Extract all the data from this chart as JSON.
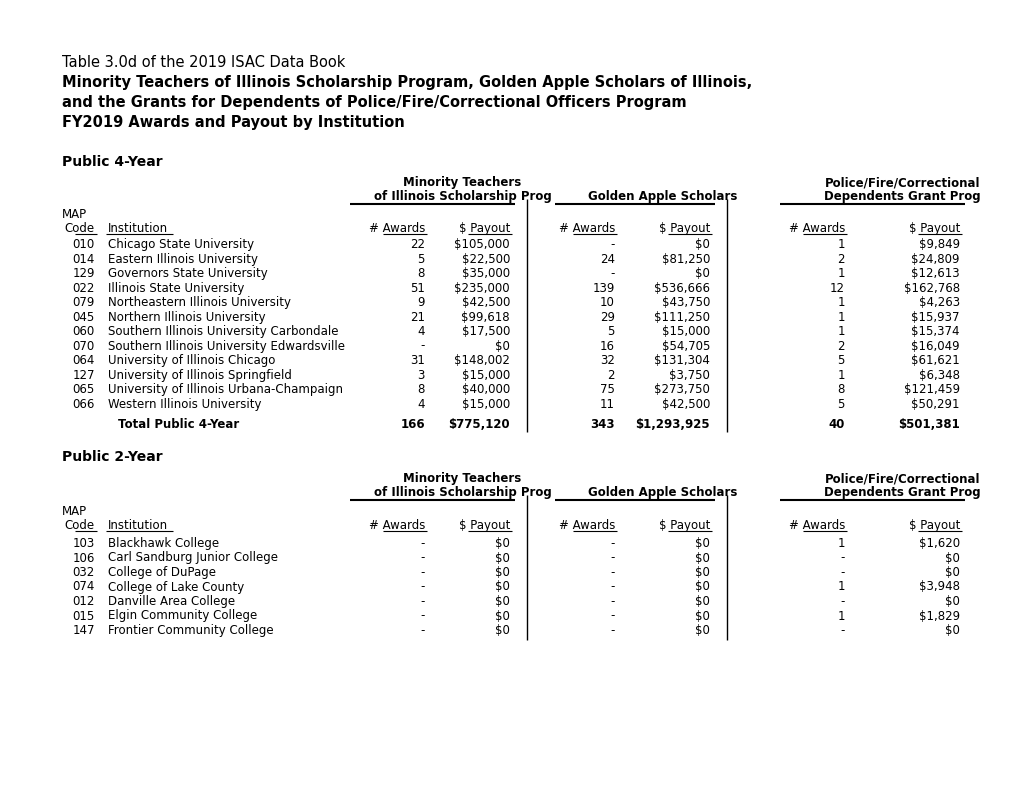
{
  "title_lines": [
    [
      "Table 3.0d of the 2019 ISAC Data Book",
      "normal"
    ],
    [
      "Minority Teachers of Illinois Scholarship Program, Golden Apple Scholars of Illinois,",
      "bold"
    ],
    [
      "and the Grants for Dependents of Police/Fire/Correctional Officers Program",
      "bold"
    ],
    [
      "FY2019 Awards and Payout by Institution",
      "bold"
    ]
  ],
  "section1_label": "Public 4-Year",
  "section2_label": "Public 2-Year",
  "public4year_rows": [
    [
      "010",
      "Chicago State University",
      "22",
      "$105,000",
      "-",
      "$0",
      "1",
      "$9,849"
    ],
    [
      "014",
      "Eastern Illinois University",
      "5",
      "$22,500",
      "24",
      "$81,250",
      "2",
      "$24,809"
    ],
    [
      "129",
      "Governors State University",
      "8",
      "$35,000",
      "-",
      "$0",
      "1",
      "$12,613"
    ],
    [
      "022",
      "Illinois State University",
      "51",
      "$235,000",
      "139",
      "$536,666",
      "12",
      "$162,768"
    ],
    [
      "079",
      "Northeastern Illinois University",
      "9",
      "$42,500",
      "10",
      "$43,750",
      "1",
      "$4,263"
    ],
    [
      "045",
      "Northern Illinois University",
      "21",
      "$99,618",
      "29",
      "$111,250",
      "1",
      "$15,937"
    ],
    [
      "060",
      "Southern Illinois University Carbondale",
      "4",
      "$17,500",
      "5",
      "$15,000",
      "1",
      "$15,374"
    ],
    [
      "070",
      "Southern Illinois University Edwardsville",
      "-",
      "$0",
      "16",
      "$54,705",
      "2",
      "$16,049"
    ],
    [
      "064",
      "University of Illinois Chicago",
      "31",
      "$148,002",
      "32",
      "$131,304",
      "5",
      "$61,621"
    ],
    [
      "127",
      "University of Illinois Springfield",
      "3",
      "$15,000",
      "2",
      "$3,750",
      "1",
      "$6,348"
    ],
    [
      "065",
      "University of Illinois Urbana-Champaign",
      "8",
      "$40,000",
      "75",
      "$273,750",
      "8",
      "$121,459"
    ],
    [
      "066",
      "Western Illinois University",
      "4",
      "$15,000",
      "11",
      "$42,500",
      "5",
      "$50,291"
    ]
  ],
  "public4year_total": [
    "Total Public 4-Year",
    "166",
    "$775,120",
    "343",
    "$1,293,925",
    "40",
    "$501,381"
  ],
  "public2year_rows": [
    [
      "103",
      "Blackhawk College",
      "-",
      "$0",
      "-",
      "$0",
      "1",
      "$1,620"
    ],
    [
      "106",
      "Carl Sandburg Junior College",
      "-",
      "$0",
      "-",
      "$0",
      "-",
      "$0"
    ],
    [
      "032",
      "College of DuPage",
      "-",
      "$0",
      "-",
      "$0",
      "-",
      "$0"
    ],
    [
      "074",
      "College of Lake County",
      "-",
      "$0",
      "-",
      "$0",
      "1",
      "$3,948"
    ],
    [
      "012",
      "Danville Area College",
      "-",
      "$0",
      "-",
      "$0",
      "-",
      "$0"
    ],
    [
      "015",
      "Elgin Community College",
      "-",
      "$0",
      "-",
      "$0",
      "1",
      "$1,829"
    ],
    [
      "147",
      "Frontier Community College",
      "-",
      "$0",
      "-",
      "$0",
      "-",
      "$0"
    ]
  ],
  "bg_color": "#ffffff",
  "text_color": "#000000"
}
